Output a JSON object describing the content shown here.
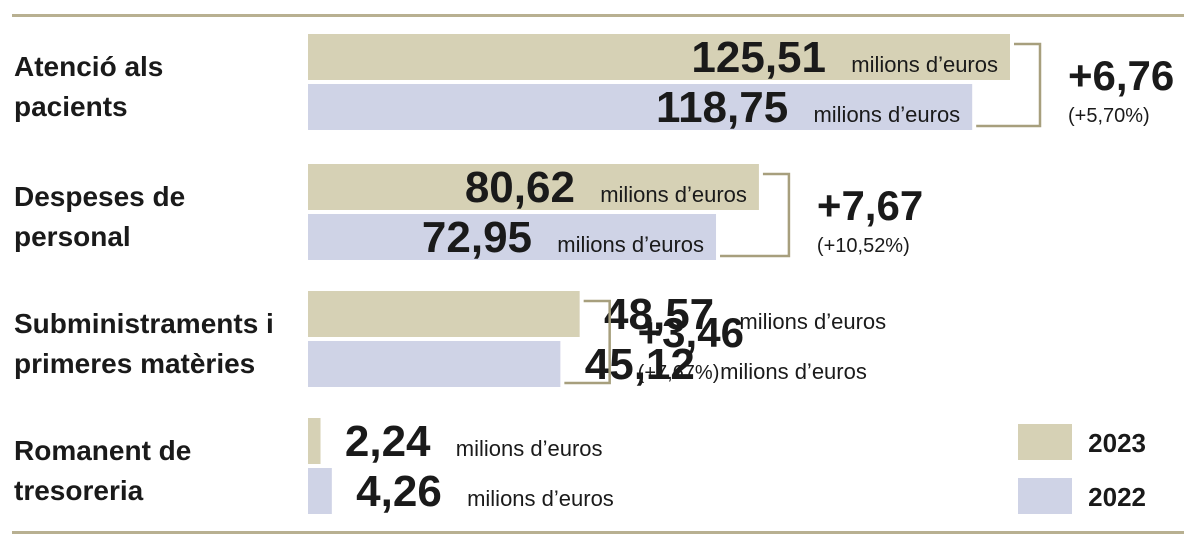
{
  "colors": {
    "y2023": "#d6d1b5",
    "y2022": "#cfd3e6",
    "rule": "#b8b091",
    "bracket": "#a79f7d"
  },
  "chart_data": {
    "type": "bar",
    "orientation": "horizontal",
    "unit_label": "milions d’euros",
    "xlim": [
      0,
      125.51
    ],
    "legend_position": "bottom-right",
    "series": [
      {
        "name": "2023",
        "color": "#d6d1b5",
        "values": [
          125.51,
          80.62,
          48.57,
          2.24
        ]
      },
      {
        "name": "2022",
        "color": "#cfd3e6",
        "values": [
          118.75,
          72.95,
          45.12,
          4.26
        ]
      }
    ],
    "categories": [
      {
        "label_lines": [
          "Atenció als",
          "pacients"
        ],
        "values_text": [
          "125,51",
          "118,75"
        ],
        "delta": "+6,76",
        "delta_pct": "(+5,70%)"
      },
      {
        "label_lines": [
          "Despeses de",
          "personal"
        ],
        "values_text": [
          "80,62",
          "72,95"
        ],
        "delta": "+7,67",
        "delta_pct": "(+10,52%)"
      },
      {
        "label_lines": [
          "Subministraments i",
          "primeres matèries"
        ],
        "values_text": [
          "48,57",
          "45,12"
        ],
        "delta": "+3,46",
        "delta_pct": "(+7,67%)"
      },
      {
        "label_lines": [
          "Romanent de",
          "tresoreria"
        ],
        "values_text": [
          "2,24",
          "4,26"
        ],
        "delta": "",
        "delta_pct": ""
      }
    ]
  }
}
